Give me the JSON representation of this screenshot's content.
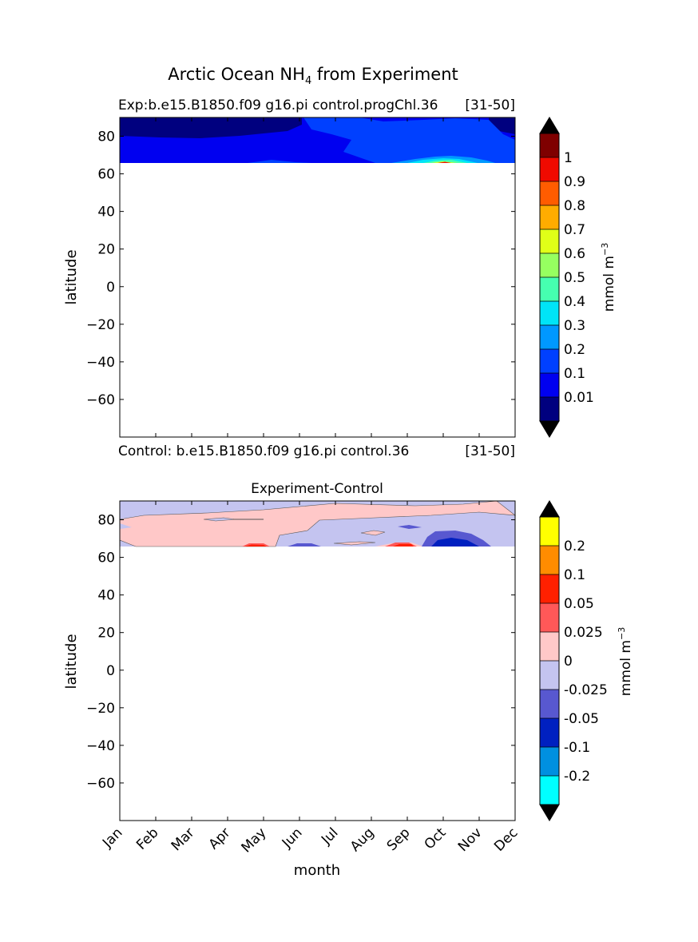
{
  "figure": {
    "title_main": "Arctic Ocean NH",
    "title_sub": "4",
    "title_tail": " from Experiment"
  },
  "chart_data": [
    {
      "type": "heatmap",
      "title": "",
      "header_left": "Exp:b.e15.B1850.f09 g16.pi control.progChl.36",
      "header_right": "[31-50]",
      "footer_left": "Control: b.e15.B1850.f09 g16.pi control.36",
      "footer_right": "[31-50]",
      "xlabel": "",
      "ylabel": "latitude",
      "xlim": [
        0,
        11
      ],
      "ylim": [
        -80,
        90
      ],
      "yticks": [
        80,
        60,
        40,
        20,
        0,
        -20,
        -40,
        -60
      ],
      "ytick_labels": [
        "80",
        "60",
        "40",
        "20",
        "0",
        "−20",
        "−40",
        "−60"
      ],
      "data_lat_range": [
        66,
        90
      ],
      "colorbar": {
        "label": "mmol m",
        "label_exp": "−3",
        "levels": [
          "0.01",
          "0.1",
          "0.2",
          "0.3",
          "0.4",
          "0.5",
          "0.6",
          "0.7",
          "0.8",
          "0.9",
          "1"
        ],
        "colors": [
          "#00007f",
          "#0000f0",
          "#0040ff",
          "#0098ff",
          "#00e4f7",
          "#46ffb0",
          "#96ff60",
          "#e0ff18",
          "#ffac00",
          "#ff5c00",
          "#f00a00",
          "#7f0000"
        ],
        "extend": "both"
      }
    },
    {
      "type": "heatmap",
      "title": "Experiment-Control",
      "xlabel": "month",
      "ylabel": "latitude",
      "xlim": [
        0,
        11
      ],
      "ylim": [
        -80,
        90
      ],
      "x": [
        "Jan",
        "Feb",
        "Mar",
        "Apr",
        "May",
        "Jun",
        "Jul",
        "Aug",
        "Sep",
        "Oct",
        "Nov",
        "Dec"
      ],
      "yticks": [
        80,
        60,
        40,
        20,
        0,
        -20,
        -40,
        -60
      ],
      "ytick_labels": [
        "80",
        "60",
        "40",
        "20",
        "0",
        "−20",
        "−40",
        "−60"
      ],
      "data_lat_range": [
        66,
        90
      ],
      "colorbar": {
        "label": "mmol m",
        "label_exp": "−3",
        "levels": [
          "-0.2",
          "-0.1",
          "-0.05",
          "-0.025",
          "0",
          "0.025",
          "0.05",
          "0.1",
          "0.2"
        ],
        "colors": [
          "#00ffff",
          "#0090e0",
          "#0020c0",
          "#5858d0",
          "#c4c4f0",
          "#ffc8c8",
          "#ff5858",
          "#ff2000",
          "#ff8c00",
          "#ffff00"
        ],
        "extend": "both"
      }
    }
  ]
}
